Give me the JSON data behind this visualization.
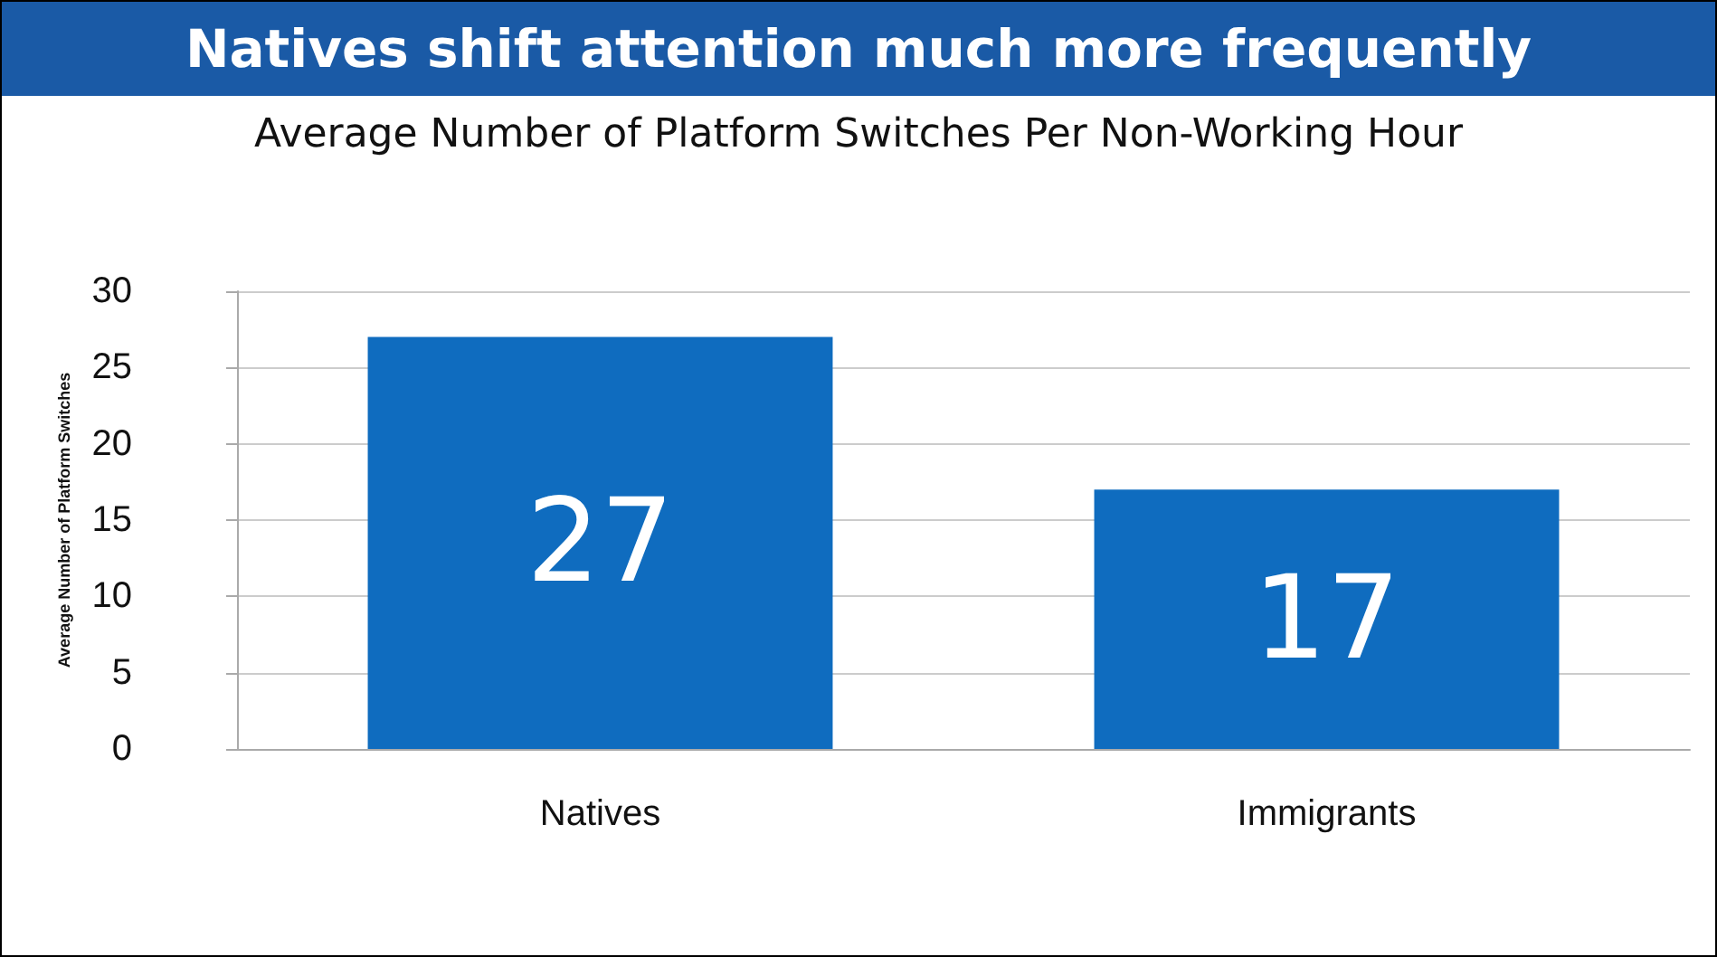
{
  "chart_data": {
    "type": "bar",
    "title": "Natives shift attention much more frequently",
    "subtitle": "Average Number of Platform Switches Per Non-Working Hour",
    "ylabel": "Average Number of Platform Switches",
    "categories": [
      "Natives",
      "Immigrants"
    ],
    "values": [
      27,
      17
    ],
    "color": "#0f6cbf",
    "ylim": [
      0,
      30
    ],
    "yticks": [
      0,
      5,
      10,
      15,
      20,
      25,
      30
    ],
    "grid": "y",
    "data_labels": true
  }
}
